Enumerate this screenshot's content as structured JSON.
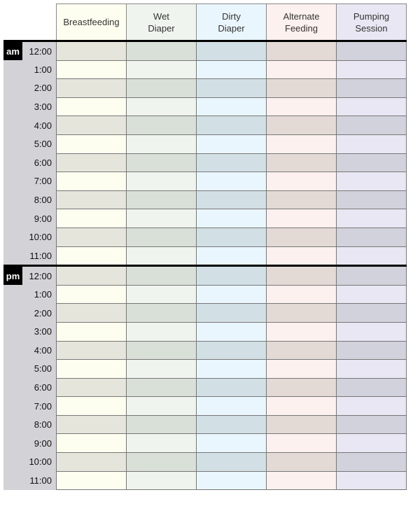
{
  "columns": [
    {
      "label": "Breastfeeding",
      "light": "#fefef0",
      "dark": "#e5e5dc"
    },
    {
      "label": "Wet\nDiaper",
      "light": "#eff4ee",
      "dark": "#d8e0d8"
    },
    {
      "label": "Dirty\nDiaper",
      "light": "#eaf6fd",
      "dark": "#d2e0e6"
    },
    {
      "label": "Alternate\nFeeding",
      "light": "#fcf1ee",
      "dark": "#e4dad5"
    },
    {
      "label": "Pumping\nSession",
      "light": "#e9e7f3",
      "dark": "#d2d2dc"
    }
  ],
  "periods": [
    {
      "label": "am",
      "times": [
        "12:00",
        "1:00",
        "2:00",
        "3:00",
        "4:00",
        "5:00",
        "6:00",
        "7:00",
        "8:00",
        "9:00",
        "10:00",
        "11:00"
      ]
    },
    {
      "label": "pm",
      "times": [
        "12:00",
        "1:00",
        "2:00",
        "3:00",
        "4:00",
        "5:00",
        "6:00",
        "7:00",
        "8:00",
        "9:00",
        "10:00",
        "11:00"
      ]
    }
  ]
}
